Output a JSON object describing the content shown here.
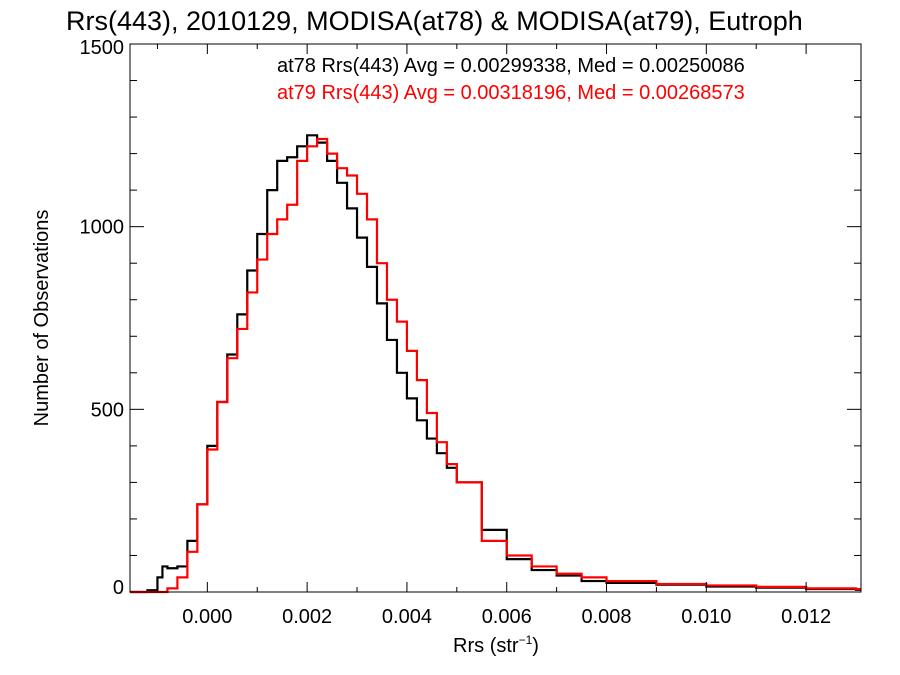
{
  "chart_data": {
    "type": "histogram-step",
    "title": "Rrs(443), 2010129, MODISA(at78) & MODISA(at79), Eutroph",
    "xlabel": "Rrs (str",
    "xlabel_sup": "−1",
    "xlabel_close": ")",
    "ylabel": "Number of Observations",
    "xlim": [
      -0.00155,
      0.0131
    ],
    "ylim": [
      0,
      1500
    ],
    "xticks": [
      {
        "v": 0.0,
        "label": "0.000"
      },
      {
        "v": 0.002,
        "label": "0.002"
      },
      {
        "v": 0.004,
        "label": "0.004"
      },
      {
        "v": 0.006,
        "label": "0.006"
      },
      {
        "v": 0.008,
        "label": "0.008"
      },
      {
        "v": 0.01,
        "label": "0.010"
      },
      {
        "v": 0.012,
        "label": "0.012"
      }
    ],
    "yticks": [
      {
        "v": 0,
        "label": "0"
      },
      {
        "v": 500,
        "label": "500"
      },
      {
        "v": 1000,
        "label": "1000"
      },
      {
        "v": 1500,
        "label": "1500"
      }
    ],
    "annotations": [
      {
        "text": "at78 Rrs(443) Avg = 0.00299338, Med = 0.00250086",
        "color": "#000000"
      },
      {
        "text": "at79 Rrs(443) Avg = 0.00318196, Med = 0.00268573",
        "color": "#ff0000"
      }
    ],
    "series": [
      {
        "color": "#000000",
        "x": [
          -0.00155,
          -0.0012,
          -0.001,
          -0.0009,
          -0.0008,
          -0.0006,
          -0.0004,
          -0.0002,
          0.0,
          0.0002,
          0.0004,
          0.0006,
          0.0008,
          0.001,
          0.0012,
          0.0014,
          0.0016,
          0.0018,
          0.002,
          0.0022,
          0.0024,
          0.0026,
          0.0028,
          0.003,
          0.0032,
          0.0034,
          0.0036,
          0.0038,
          0.004,
          0.0042,
          0.0044,
          0.0046,
          0.0048,
          0.005,
          0.0055,
          0.006,
          0.0065,
          0.007,
          0.0075,
          0.008,
          0.009,
          0.01,
          0.011,
          0.012,
          0.013
        ],
        "y": [
          0,
          5,
          40,
          70,
          65,
          70,
          140,
          240,
          400,
          520,
          650,
          760,
          880,
          980,
          1100,
          1180,
          1190,
          1220,
          1250,
          1230,
          1180,
          1120,
          1050,
          970,
          890,
          790,
          690,
          600,
          530,
          470,
          420,
          380,
          340,
          300,
          170,
          90,
          60,
          45,
          30,
          25,
          20,
          15,
          12,
          8,
          6
        ]
      },
      {
        "color": "#ff0000",
        "x": [
          -0.00155,
          -0.0012,
          -0.001,
          -0.0008,
          -0.0006,
          -0.0004,
          -0.0002,
          0.0,
          0.0002,
          0.0004,
          0.0006,
          0.0008,
          0.001,
          0.0012,
          0.0014,
          0.0016,
          0.0018,
          0.002,
          0.0022,
          0.0024,
          0.0026,
          0.0028,
          0.003,
          0.0032,
          0.0034,
          0.0036,
          0.0038,
          0.004,
          0.0042,
          0.0044,
          0.0046,
          0.0048,
          0.005,
          0.0055,
          0.006,
          0.0065,
          0.007,
          0.0075,
          0.008,
          0.009,
          0.01,
          0.011,
          0.012,
          0.013
        ],
        "y": [
          0,
          0,
          0,
          10,
          40,
          110,
          240,
          390,
          520,
          640,
          720,
          820,
          910,
          980,
          1020,
          1060,
          1180,
          1220,
          1240,
          1200,
          1160,
          1140,
          1090,
          1020,
          900,
          800,
          740,
          660,
          580,
          490,
          410,
          350,
          300,
          140,
          100,
          70,
          50,
          40,
          30,
          22,
          18,
          14,
          10,
          8
        ]
      }
    ]
  }
}
